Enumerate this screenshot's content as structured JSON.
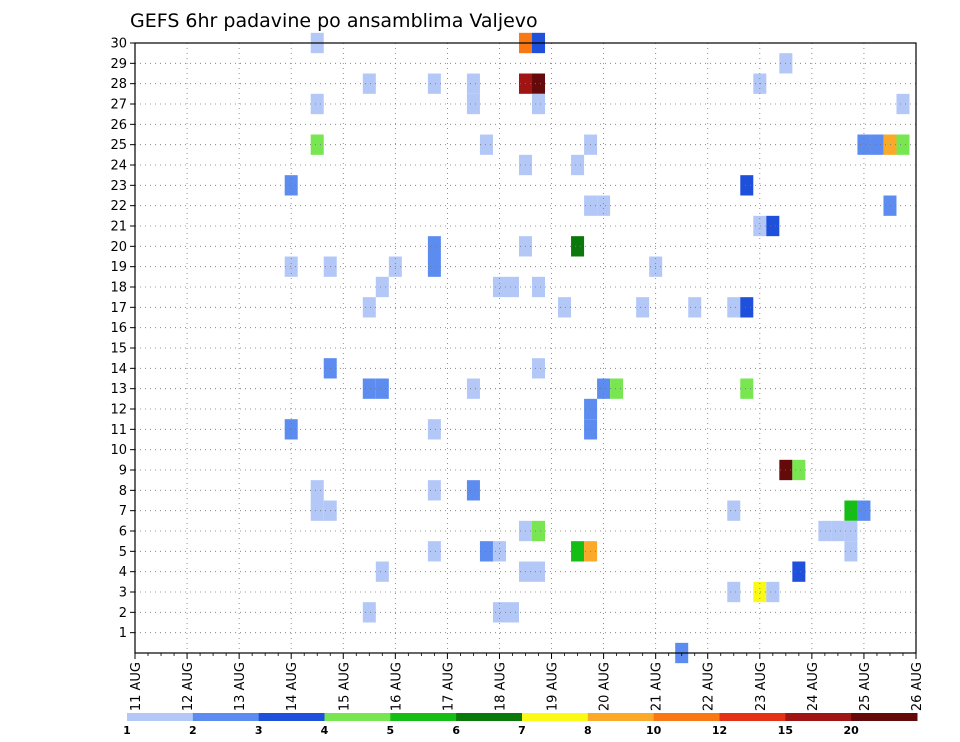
{
  "chart_data": {
    "type": "heatmap",
    "title": "GEFS 6hr padavine po ansamblima Valjevo",
    "x_labels": [
      "11 AUG",
      "12 AUG",
      "13 AUG",
      "14 AUG",
      "15 AUG",
      "16 AUG",
      "17 AUG",
      "18 AUG",
      "19 AUG",
      "20 AUG",
      "21 AUG",
      "22 AUG",
      "23 AUG",
      "24 AUG",
      "25 AUG",
      "26 AUG"
    ],
    "x_unit": "6h steps since 11 AUG 00Z",
    "xlim": [
      0,
      60
    ],
    "y_labels": [
      "1",
      "2",
      "3",
      "4",
      "5",
      "6",
      "7",
      "8",
      "9",
      "10",
      "11",
      "12",
      "13",
      "14",
      "15",
      "16",
      "17",
      "18",
      "19",
      "20",
      "21",
      "22",
      "23",
      "24",
      "25",
      "26",
      "27",
      "28",
      "29",
      "30"
    ],
    "ylim": [
      0,
      30
    ],
    "grid": true,
    "colorbar": {
      "labels": [
        "1",
        "2",
        "3",
        "4",
        "5",
        "6",
        "7",
        "8",
        "10",
        "12",
        "15",
        "20"
      ],
      "colors": [
        "#b4c8f8",
        "#5c8cf0",
        "#1e50dc",
        "#78e650",
        "#14be14",
        "#0a780a",
        "#fafa14",
        "#faaa28",
        "#fa7814",
        "#e63214",
        "#a01414",
        "#640a0a"
      ]
    },
    "cells": [
      {
        "x": 14,
        "y": 30,
        "v": 1
      },
      {
        "x": 30,
        "y": 30,
        "v": 10
      },
      {
        "x": 31,
        "y": 30,
        "v": 3
      },
      {
        "x": 50,
        "y": 29,
        "v": 1
      },
      {
        "x": 18,
        "y": 28,
        "v": 1
      },
      {
        "x": 23,
        "y": 28,
        "v": 1
      },
      {
        "x": 26,
        "y": 28,
        "v": 1
      },
      {
        "x": 30,
        "y": 28,
        "v": 15
      },
      {
        "x": 31,
        "y": 28,
        "v": 20
      },
      {
        "x": 48,
        "y": 28,
        "v": 1
      },
      {
        "x": 14,
        "y": 27,
        "v": 1
      },
      {
        "x": 26,
        "y": 27,
        "v": 1
      },
      {
        "x": 31,
        "y": 27,
        "v": 1
      },
      {
        "x": 59,
        "y": 27,
        "v": 1
      },
      {
        "x": 14,
        "y": 25,
        "v": 4
      },
      {
        "x": 27,
        "y": 25,
        "v": 1
      },
      {
        "x": 35,
        "y": 25,
        "v": 1
      },
      {
        "x": 56,
        "y": 25,
        "v": 2
      },
      {
        "x": 57,
        "y": 25,
        "v": 2
      },
      {
        "x": 58,
        "y": 25,
        "v": 8
      },
      {
        "x": 59,
        "y": 25,
        "v": 4
      },
      {
        "x": 30,
        "y": 24,
        "v": 1
      },
      {
        "x": 34,
        "y": 24,
        "v": 1
      },
      {
        "x": 12,
        "y": 23,
        "v": 2
      },
      {
        "x": 47,
        "y": 23,
        "v": 3
      },
      {
        "x": 35,
        "y": 22,
        "v": 1
      },
      {
        "x": 36,
        "y": 22,
        "v": 1
      },
      {
        "x": 58,
        "y": 22,
        "v": 2
      },
      {
        "x": 48,
        "y": 21,
        "v": 1
      },
      {
        "x": 49,
        "y": 21,
        "v": 3
      },
      {
        "x": 23,
        "y": 20,
        "v": 2
      },
      {
        "x": 30,
        "y": 20,
        "v": 1
      },
      {
        "x": 34,
        "y": 20,
        "v": 6
      },
      {
        "x": 12,
        "y": 19,
        "v": 1
      },
      {
        "x": 15,
        "y": 19,
        "v": 1
      },
      {
        "x": 20,
        "y": 19,
        "v": 1
      },
      {
        "x": 23,
        "y": 19,
        "v": 2
      },
      {
        "x": 40,
        "y": 19,
        "v": 1
      },
      {
        "x": 19,
        "y": 18,
        "v": 1
      },
      {
        "x": 28,
        "y": 18,
        "v": 1
      },
      {
        "x": 29,
        "y": 18,
        "v": 1
      },
      {
        "x": 31,
        "y": 18,
        "v": 1
      },
      {
        "x": 18,
        "y": 17,
        "v": 1
      },
      {
        "x": 33,
        "y": 17,
        "v": 1
      },
      {
        "x": 39,
        "y": 17,
        "v": 1
      },
      {
        "x": 43,
        "y": 17,
        "v": 1
      },
      {
        "x": 46,
        "y": 17,
        "v": 1
      },
      {
        "x": 47,
        "y": 17,
        "v": 3
      },
      {
        "x": 15,
        "y": 14,
        "v": 2
      },
      {
        "x": 31,
        "y": 14,
        "v": 1
      },
      {
        "x": 18,
        "y": 13,
        "v": 2
      },
      {
        "x": 19,
        "y": 13,
        "v": 2
      },
      {
        "x": 26,
        "y": 13,
        "v": 1
      },
      {
        "x": 36,
        "y": 13,
        "v": 2
      },
      {
        "x": 37,
        "y": 13,
        "v": 4
      },
      {
        "x": 47,
        "y": 13,
        "v": 4
      },
      {
        "x": 35,
        "y": 12,
        "v": 2
      },
      {
        "x": 12,
        "y": 11,
        "v": 2
      },
      {
        "x": 23,
        "y": 11,
        "v": 1
      },
      {
        "x": 35,
        "y": 11,
        "v": 2
      },
      {
        "x": 50,
        "y": 9,
        "v": 20
      },
      {
        "x": 51,
        "y": 9,
        "v": 4
      },
      {
        "x": 14,
        "y": 8,
        "v": 1
      },
      {
        "x": 23,
        "y": 8,
        "v": 1
      },
      {
        "x": 26,
        "y": 8,
        "v": 2
      },
      {
        "x": 14,
        "y": 7,
        "v": 1
      },
      {
        "x": 15,
        "y": 7,
        "v": 1
      },
      {
        "x": 46,
        "y": 7,
        "v": 1
      },
      {
        "x": 55,
        "y": 7,
        "v": 5
      },
      {
        "x": 56,
        "y": 7,
        "v": 2
      },
      {
        "x": 30,
        "y": 6,
        "v": 1
      },
      {
        "x": 31,
        "y": 6,
        "v": 4
      },
      {
        "x": 53,
        "y": 6,
        "v": 1
      },
      {
        "x": 54,
        "y": 6,
        "v": 1
      },
      {
        "x": 55,
        "y": 6,
        "v": 1
      },
      {
        "x": 23,
        "y": 5,
        "v": 1
      },
      {
        "x": 27,
        "y": 5,
        "v": 2
      },
      {
        "x": 28,
        "y": 5,
        "v": 1
      },
      {
        "x": 34,
        "y": 5,
        "v": 5
      },
      {
        "x": 35,
        "y": 5,
        "v": 8
      },
      {
        "x": 55,
        "y": 5,
        "v": 1
      },
      {
        "x": 19,
        "y": 4,
        "v": 1
      },
      {
        "x": 30,
        "y": 4,
        "v": 1
      },
      {
        "x": 31,
        "y": 4,
        "v": 1
      },
      {
        "x": 51,
        "y": 4,
        "v": 3
      },
      {
        "x": 46,
        "y": 3,
        "v": 1
      },
      {
        "x": 48,
        "y": 3,
        "v": 7
      },
      {
        "x": 49,
        "y": 3,
        "v": 1
      },
      {
        "x": 18,
        "y": 2,
        "v": 1
      },
      {
        "x": 28,
        "y": 2,
        "v": 1
      },
      {
        "x": 29,
        "y": 2,
        "v": 1
      },
      {
        "x": 42,
        "y": 0,
        "v": 2
      }
    ]
  }
}
